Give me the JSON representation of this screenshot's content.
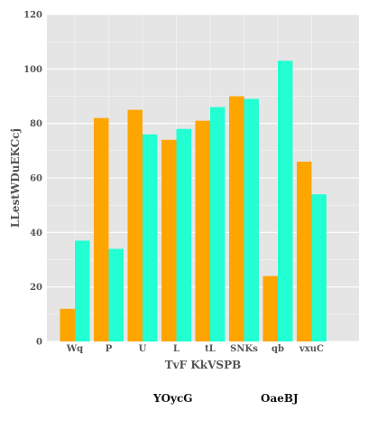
{
  "chart_data": {
    "type": "bar",
    "title": "",
    "xlabel": "TvF KkVSPB",
    "ylabel": "LLestWDuEKCcj",
    "categories": [
      "Wq",
      "P",
      "U",
      "L",
      "tL",
      "SNKs",
      "qb",
      "vxuC"
    ],
    "series": [
      {
        "name": "YOycG",
        "values": [
          12,
          82,
          85,
          74,
          81,
          90,
          24,
          66
        ],
        "color": "#FFA500"
      },
      {
        "name": "OaeBJ",
        "values": [
          37,
          34,
          76,
          78,
          86,
          89,
          103,
          54
        ],
        "color": "#22FFD2"
      }
    ],
    "ylim": [
      0,
      120
    ],
    "yticks": [
      0,
      20,
      40,
      60,
      80,
      100,
      120
    ],
    "grid": true,
    "legend": "bottom",
    "background": "#E5E5E5",
    "grid_color": "#FFFFFF"
  }
}
